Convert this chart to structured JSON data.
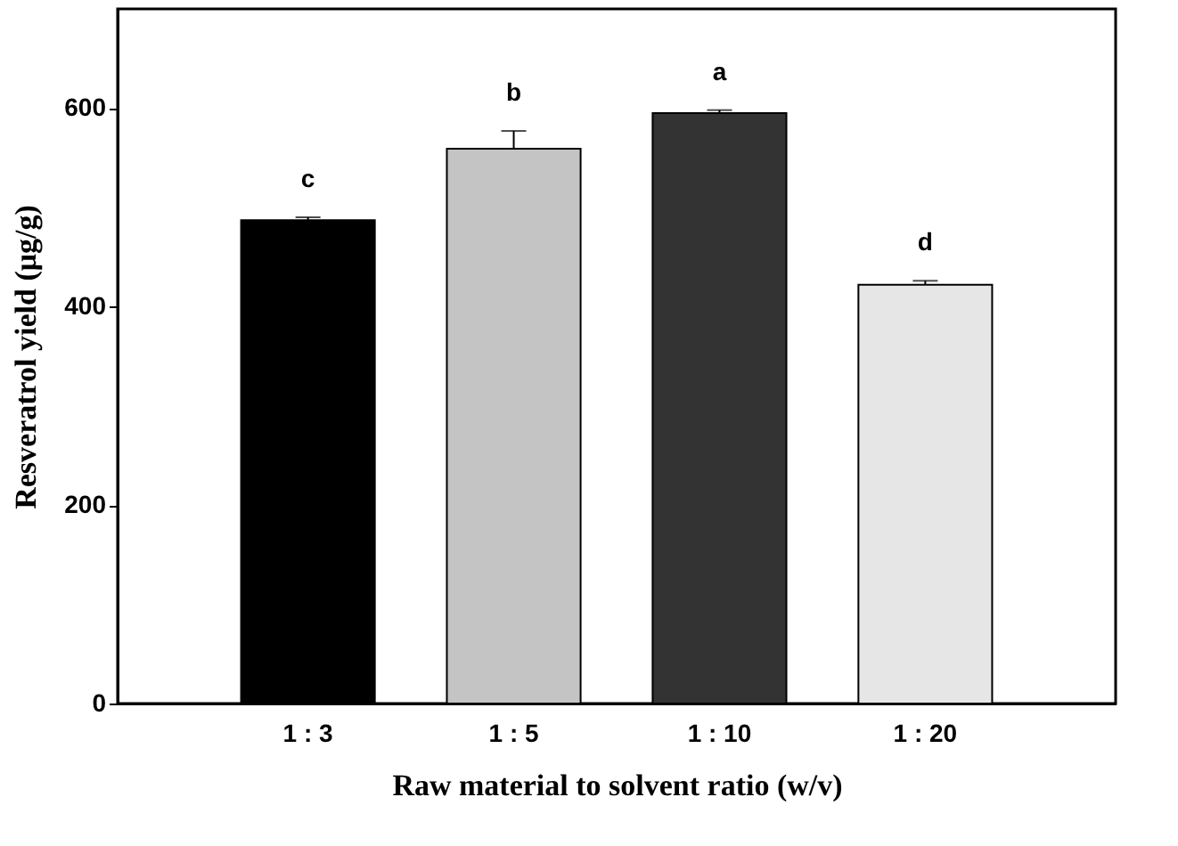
{
  "chart_data": {
    "type": "bar",
    "categories": [
      "1 : 3",
      "1 : 5",
      "1 : 10",
      "1 : 20"
    ],
    "values": [
      487,
      559,
      595,
      422
    ],
    "errors": [
      3,
      18,
      3,
      4
    ],
    "colors": [
      "#000000",
      "#c4c4c4",
      "#333333",
      "#e6e6e6"
    ],
    "xlabel": "Raw material to solvent ratio (w/v)",
    "ylabel": "Resveratrol yield (μg/g)",
    "ylim": [
      0,
      700
    ],
    "yticks": [
      0,
      200,
      400,
      600
    ],
    "grid": false,
    "annotations": [
      "c",
      "b",
      "a",
      "d"
    ]
  }
}
